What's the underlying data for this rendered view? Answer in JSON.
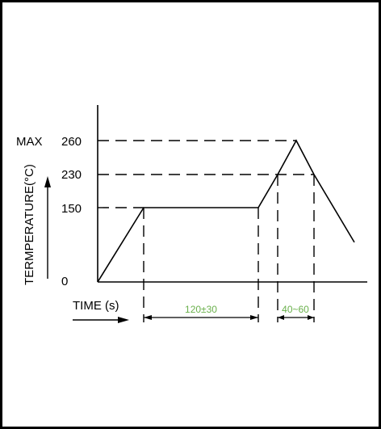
{
  "chart_data": {
    "type": "line",
    "title": "",
    "xlabel": "TIME (s)",
    "ylabel": "TERMPERATURE(°C)",
    "y_ticks": [
      {
        "label": "0",
        "value": 0
      },
      {
        "label": "150",
        "value": 150
      },
      {
        "label": "230",
        "value": 230
      },
      {
        "label": "260",
        "value": 260
      }
    ],
    "max_label": "MAX",
    "intervals": [
      {
        "label": "120±30"
      },
      {
        "label": "40~60"
      }
    ],
    "series": [
      {
        "values": [
          {
            "x": 0,
            "y": 0
          },
          {
            "x": 1,
            "y": 150
          },
          {
            "x": 2,
            "y": 150
          },
          {
            "x": 3,
            "y": 230
          },
          {
            "x": 4,
            "y": 260
          },
          {
            "x": 5,
            "y": 230
          },
          {
            "x": 6,
            "y": 80
          }
        ]
      }
    ],
    "grid": false,
    "colors": {
      "line": "#000000",
      "interval_text": "#6ab04c"
    }
  }
}
